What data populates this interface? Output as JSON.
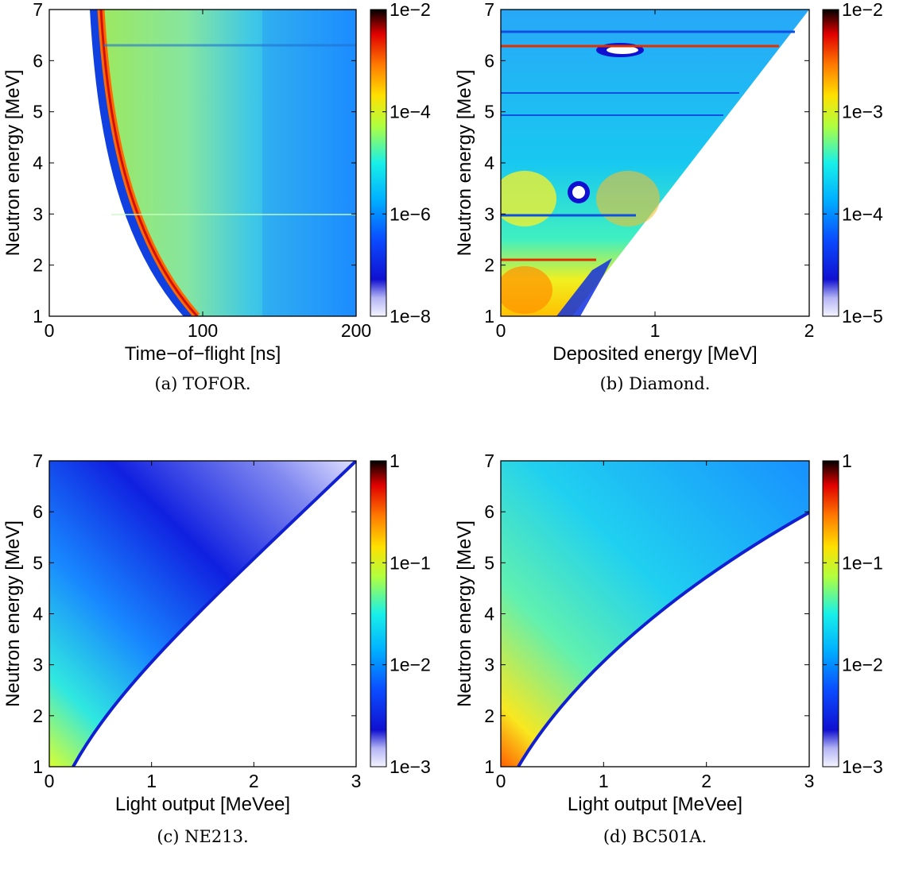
{
  "colors": {
    "jet": [
      "#f4f4ff",
      "#1010d0",
      "#0a3cff",
      "#1c8cff",
      "#00d6ff",
      "#56ffae",
      "#cfff30",
      "#ffc000",
      "#ff5a00",
      "#d00000",
      "#000000"
    ],
    "axis": "#000000"
  },
  "chart_data": [
    {
      "id": "a",
      "type": "heatmap",
      "caption": "(a) TOFOR.",
      "xlabel": "Time−of−flight [ns]",
      "ylabel": "Neutron energy [MeV]",
      "xlim": [
        0,
        200
      ],
      "ylim": [
        1,
        7
      ],
      "x_ticks": [
        "0",
        "100",
        "200"
      ],
      "y_ticks": [
        "1",
        "2",
        "3",
        "4",
        "5",
        "6",
        "7"
      ],
      "colorbar_ticks": [
        "1e−8",
        "1e−6",
        "1e−4",
        "1e−2"
      ],
      "colorbar_range": [
        "1e-8",
        "1e-2"
      ],
      "scale": "log"
    },
    {
      "id": "b",
      "type": "heatmap",
      "caption": "(b) Diamond.",
      "xlabel": "Deposited energy [MeV]",
      "ylabel": "Neutron energy [MeV]",
      "xlim": [
        0,
        2
      ],
      "ylim": [
        1,
        7
      ],
      "x_ticks": [
        "0",
        "1",
        "2"
      ],
      "y_ticks": [
        "1",
        "2",
        "3",
        "4",
        "5",
        "6",
        "7"
      ],
      "colorbar_ticks": [
        "1e−5",
        "1e−4",
        "1e−3",
        "1e−2"
      ],
      "colorbar_range": [
        "1e-5",
        "1e-2"
      ],
      "scale": "log"
    },
    {
      "id": "c",
      "type": "heatmap",
      "caption": "(c) NE213.",
      "xlabel": "Light output [MeVee]",
      "ylabel": "Neutron energy [MeV]",
      "xlim": [
        0,
        3
      ],
      "ylim": [
        1,
        7
      ],
      "x_ticks": [
        "0",
        "1",
        "2",
        "3"
      ],
      "y_ticks": [
        "1",
        "2",
        "3",
        "4",
        "5",
        "6",
        "7"
      ],
      "colorbar_ticks": [
        "1e−3",
        "1e−2",
        "1e−1",
        "1"
      ],
      "colorbar_range": [
        "1e-3",
        "1"
      ],
      "scale": "log"
    },
    {
      "id": "d",
      "type": "heatmap",
      "caption": "(d) BC501A.",
      "xlabel": "Light output [MeVee]",
      "ylabel": "Neutron energy [MeV]",
      "xlim": [
        0,
        3
      ],
      "ylim": [
        1,
        7
      ],
      "x_ticks": [
        "0",
        "1",
        "2",
        "3"
      ],
      "y_ticks": [
        "1",
        "2",
        "3",
        "4",
        "5",
        "6",
        "7"
      ],
      "colorbar_ticks": [
        "1e−3",
        "1e−2",
        "1e−1",
        "1"
      ],
      "colorbar_range": [
        "1e-3",
        "1"
      ],
      "scale": "log"
    }
  ]
}
